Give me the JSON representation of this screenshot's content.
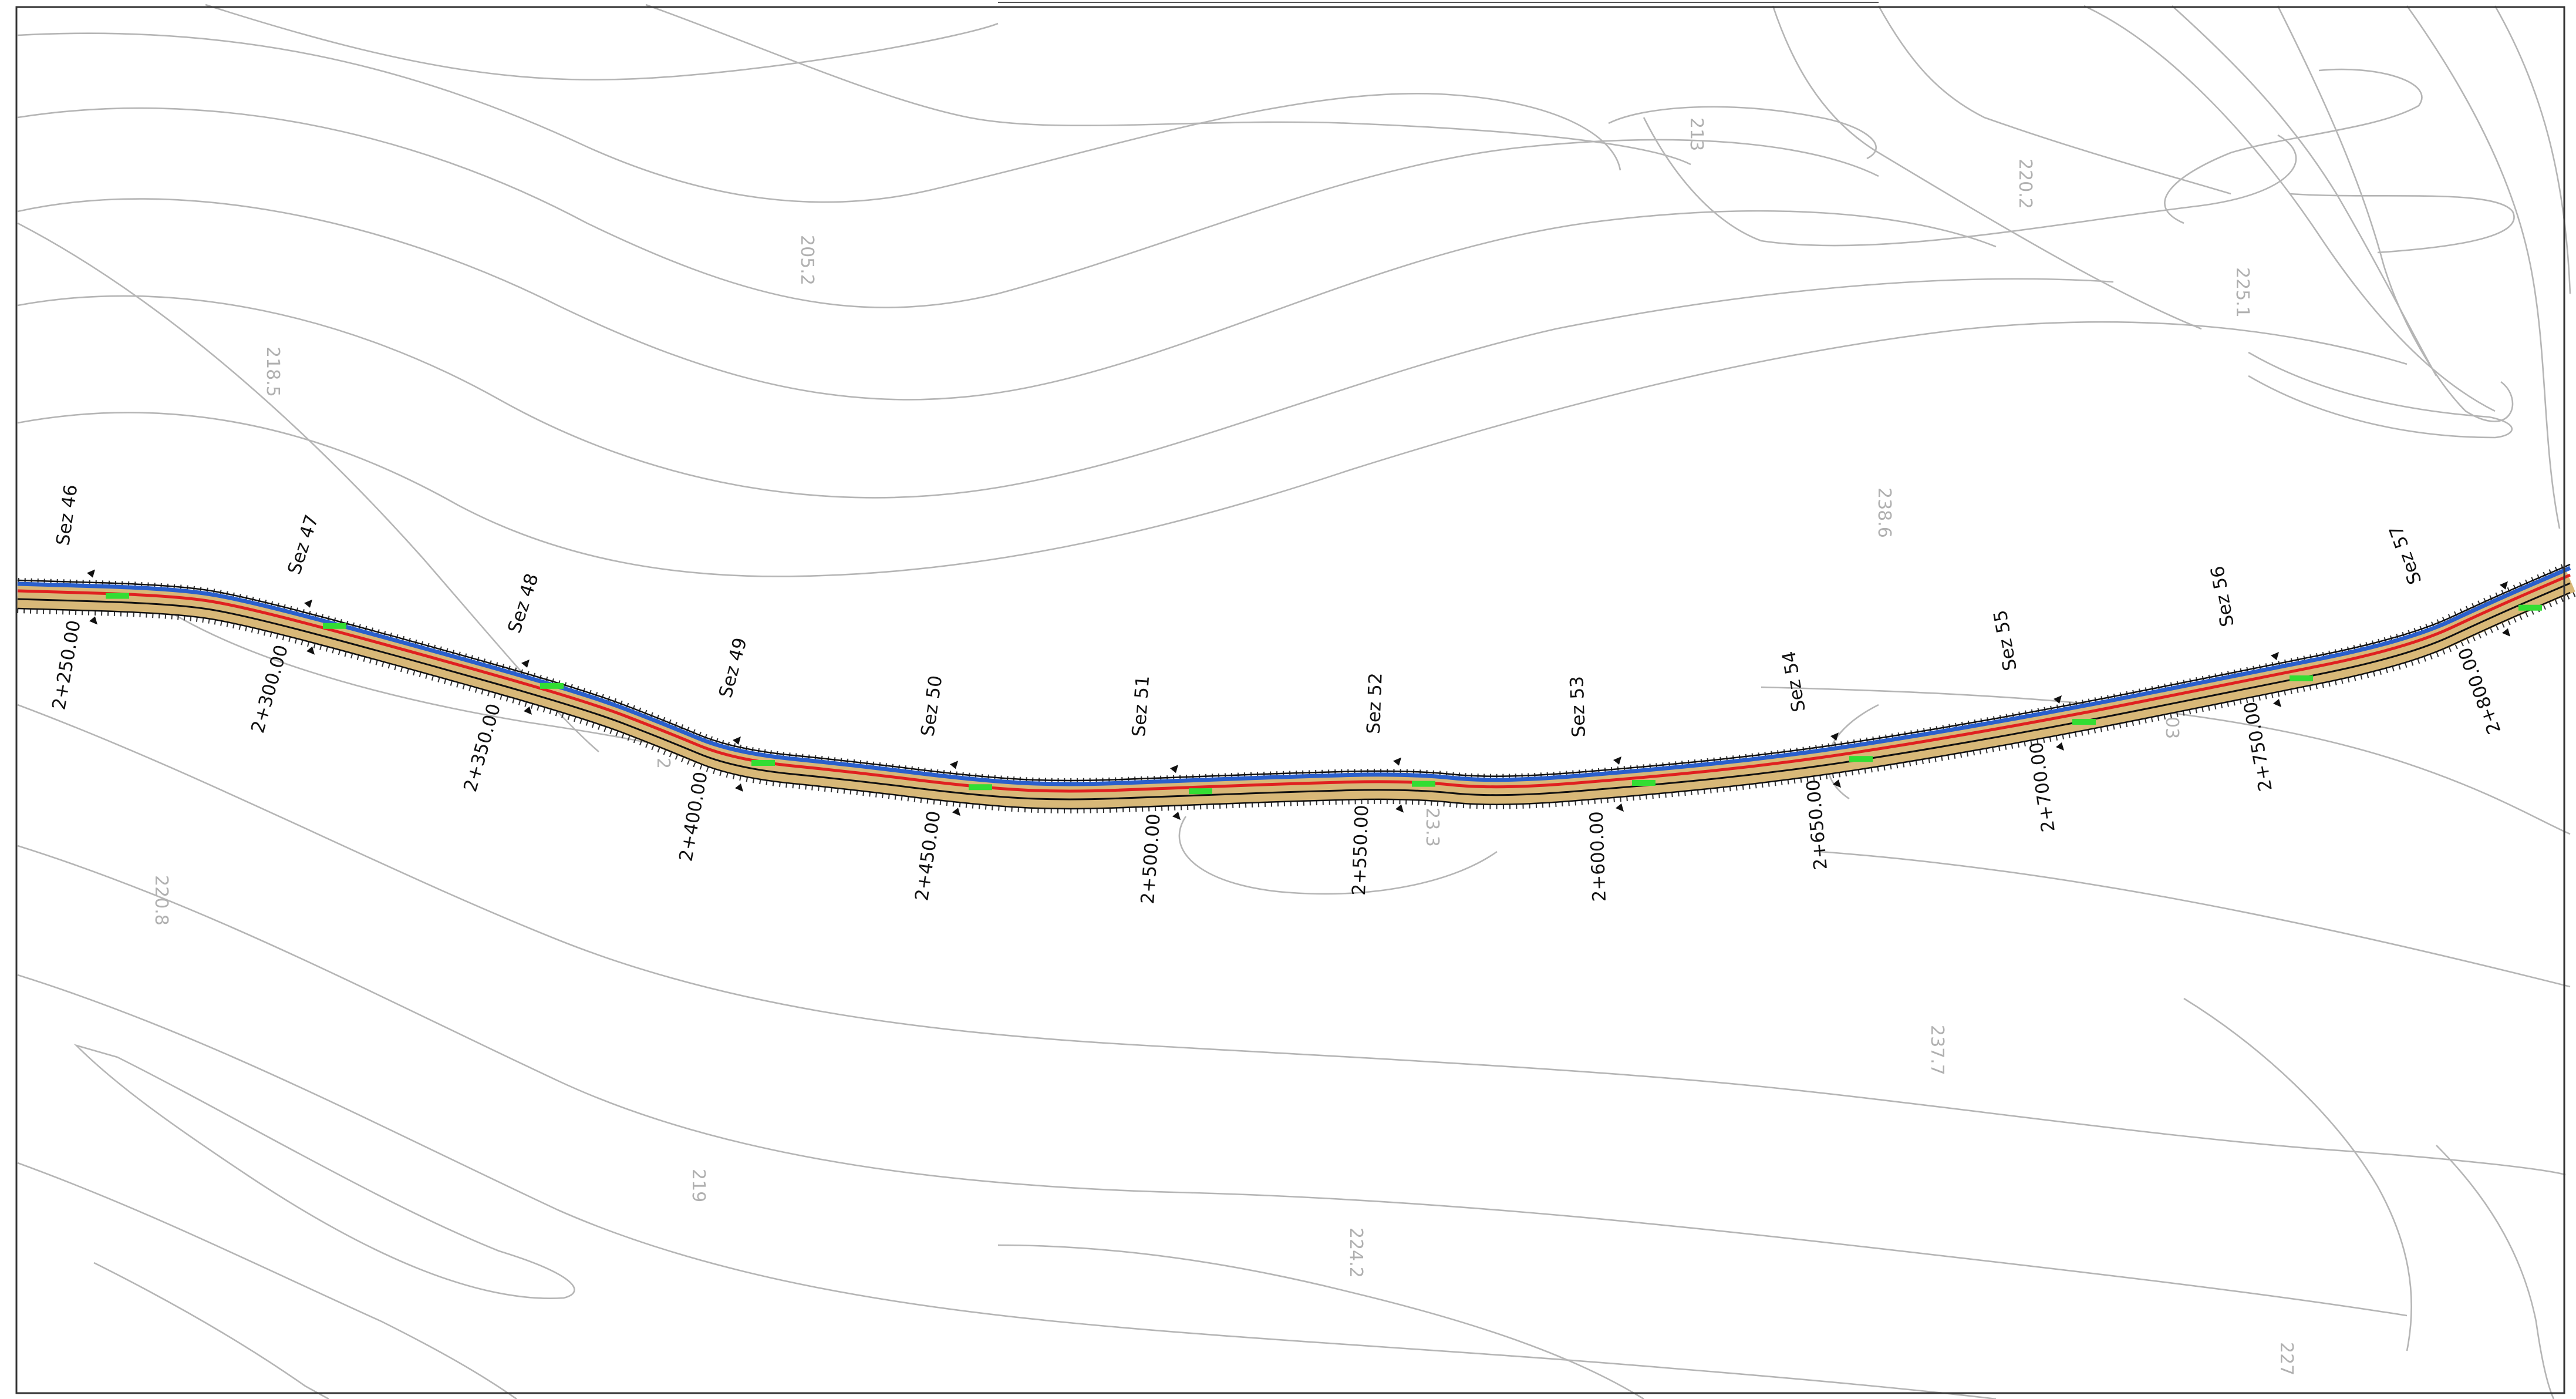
{
  "drawing": {
    "type": "road-plan",
    "colors": {
      "background": "#ffffff",
      "frame": "#333333",
      "contour": "#b5b5b5",
      "contour_label": "#b0b0b0",
      "carriageway": "#d8b878",
      "axis": "#e02020",
      "left_edge": "#2a5fcc",
      "embankment_hatch": "#333333",
      "marker": "#33dd33"
    }
  },
  "contour_labels": [
    "205.2",
    "218.5",
    "213",
    "220.2",
    "225.1",
    "238.6",
    "220.8",
    "219",
    "224.2",
    "237.7",
    "227",
    "23.3",
    "2",
    "03"
  ],
  "chainages": [
    "2+250.00",
    "2+300.00",
    "2+350.00",
    "2+400.00",
    "2+450.00",
    "2+500.00",
    "2+550.00",
    "2+600.00",
    "2+650.00",
    "2+700.00",
    "2+750.00",
    "2+800.00"
  ],
  "sections": [
    "Sez 46",
    "Sez 47",
    "Sez 48",
    "Sez 49",
    "Sez 50",
    "Sez 51",
    "Sez 52",
    "Sez 53",
    "Sez 54",
    "Sez 55",
    "Sez 56",
    "Sez 57"
  ]
}
